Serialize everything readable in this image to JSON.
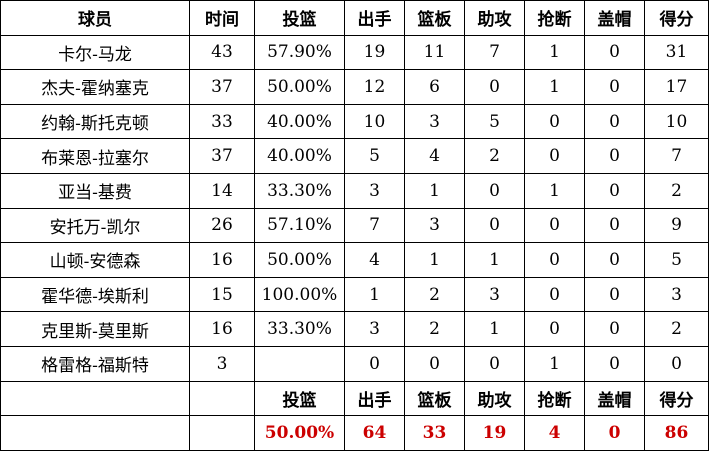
{
  "headers": [
    "球员",
    "时间",
    "投篮",
    "出手",
    "篮板",
    "助攻",
    "抢断",
    "盖帽",
    "得分"
  ],
  "rows": [
    [
      "卡尔-马龙",
      "43",
      "57.90%",
      "19",
      "11",
      "7",
      "1",
      "0",
      "31"
    ],
    [
      "杰夫-霍纳塞克",
      "37",
      "50.00%",
      "12",
      "6",
      "0",
      "1",
      "0",
      "17"
    ],
    [
      "约翰-斯托克顿",
      "33",
      "40.00%",
      "10",
      "3",
      "5",
      "0",
      "0",
      "10"
    ],
    [
      "布莱恩-拉塞尔",
      "37",
      "40.00%",
      "5",
      "4",
      "2",
      "0",
      "0",
      "7"
    ],
    [
      "亚当-基费",
      "14",
      "33.30%",
      "3",
      "1",
      "0",
      "1",
      "0",
      "2"
    ],
    [
      "安托万-凯尔",
      "26",
      "57.10%",
      "7",
      "3",
      "0",
      "0",
      "0",
      "9"
    ],
    [
      "山顿-安德森",
      "16",
      "50.00%",
      "4",
      "1",
      "1",
      "0",
      "0",
      "5"
    ],
    [
      "霍华德-埃斯利",
      "15",
      "100.00%",
      "1",
      "2",
      "3",
      "0",
      "0",
      "3"
    ],
    [
      "克里斯-莫里斯",
      "16",
      "33.30%",
      "3",
      "2",
      "1",
      "0",
      "0",
      "2"
    ],
    [
      "格雷格-福斯特",
      "3",
      "",
      "0",
      "0",
      "0",
      "1",
      "0",
      "0"
    ]
  ],
  "summary": {
    "headers": [
      "投篮",
      "出手",
      "篮板",
      "助攻",
      "抢断",
      "盖帽",
      "得分"
    ],
    "values": [
      "50.00%",
      "64",
      "33",
      "19",
      "4",
      "0",
      "86"
    ],
    "value_color": "#cc0000"
  }
}
